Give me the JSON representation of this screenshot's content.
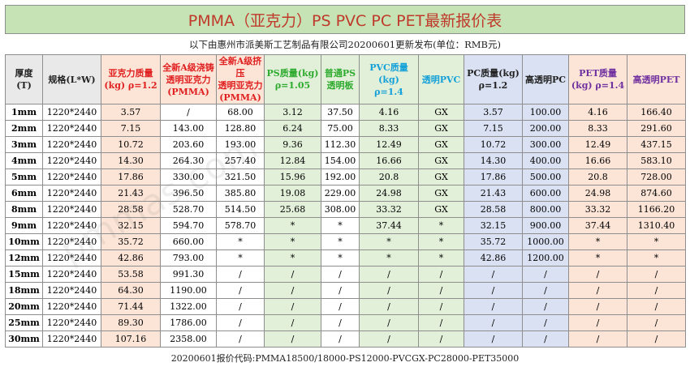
{
  "title": "PMMA（亚克力）PS PVC PC PET最新报价表",
  "subtitle": "以下由惠州市派美斯工艺制品有限公司20200601更新发布(单位：RMB元)",
  "watermark": "pmmas.com",
  "footer": "20200601报价代码:PMMA18500/18000-PS12000-PVCGX-PC28000-PET35000",
  "colors": {
    "red": "#e02020",
    "green": "#2eab2e",
    "cyan": "#14a0d8",
    "purple": "#7030a0",
    "pink_bg": "#fce4d6",
    "green_bg": "#e2f0d9",
    "blue_bg": "#d9e1f2",
    "title_bg": "#c5e3b4"
  },
  "headers": [
    [
      "厚度",
      "(T)"
    ],
    [
      "规格(L*W)"
    ],
    [
      "亚克力质量",
      "(kg) ρ=1.2"
    ],
    [
      "全新A级浇铸",
      "透明亚克力",
      "(PMMA)"
    ],
    [
      "全新A级挤压",
      "透明亚克力",
      "(PMMA)"
    ],
    [
      "PS质量(kg)",
      "ρ=1.05"
    ],
    [
      "普通PS",
      "透明板"
    ],
    [
      "PVC质量(kg)",
      "ρ=1.4"
    ],
    [
      "透明PVC"
    ],
    [
      "PC质量(kg)",
      "ρ=1.2"
    ],
    [
      "高透明PC"
    ],
    [
      "PET质量",
      "(kg) ρ=1.4"
    ],
    [
      "高透明PET"
    ]
  ],
  "rows": [
    [
      "1mm",
      "1220*2440",
      "3.57",
      "/",
      "68.00",
      "3.12",
      "37.50",
      "4.16",
      "GX",
      "3.57",
      "100.00",
      "4.16",
      "166.40"
    ],
    [
      "2mm",
      "1220*2440",
      "7.15",
      "143.00",
      "128.80",
      "6.24",
      "75.00",
      "8.33",
      "GX",
      "7.15",
      "200.00",
      "8.33",
      "291.60"
    ],
    [
      "3mm",
      "1220*2440",
      "10.72",
      "203.60",
      "193.00",
      "9.36",
      "112.30",
      "12.49",
      "GX",
      "10.72",
      "300.00",
      "12.49",
      "437.15"
    ],
    [
      "4mm",
      "1220*2440",
      "14.30",
      "264.30",
      "257.40",
      "12.84",
      "154.00",
      "16.66",
      "GX",
      "14.30",
      "400.00",
      "16.66",
      "583.10"
    ],
    [
      "5mm",
      "1220*2440",
      "17.86",
      "330.00",
      "321.50",
      "15.96",
      "192.00",
      "20.8",
      "GX",
      "17.86",
      "500.00",
      "20.8",
      "728.00"
    ],
    [
      "6mm",
      "1220*2440",
      "21.43",
      "396.50",
      "385.80",
      "19.08",
      "229.00",
      "24.98",
      "GX",
      "21.43",
      "600.00",
      "24.98",
      "874.60"
    ],
    [
      "8mm",
      "1220*2440",
      "28.58",
      "528.70",
      "514.50",
      "25.68",
      "308.00",
      "33.32",
      "GX",
      "28.58",
      "800.00",
      "33.32",
      "1166.20"
    ],
    [
      "9mm",
      "1220*2440",
      "32.15",
      "594.70",
      "578.70",
      "*",
      "*",
      "37.44",
      "*",
      "32.15",
      "900.00",
      "37.44",
      "1310.40"
    ],
    [
      "10mm",
      "1220*2440",
      "35.72",
      "660.00",
      "*",
      "*",
      "*",
      "*",
      "*",
      "35.72",
      "1000.00",
      "*",
      "*"
    ],
    [
      "12mm",
      "1220*2440",
      "42.86",
      "793.00",
      "*",
      "*",
      "*",
      "*",
      "*",
      "42.86",
      "1200.00",
      "*",
      "*"
    ],
    [
      "15mm",
      "1220*2440",
      "53.58",
      "991.30",
      "/",
      "/",
      "/",
      "/",
      "/",
      "/",
      "/",
      "/",
      "/"
    ],
    [
      "18mm",
      "1220*2440",
      "64.30",
      "1190.00",
      "/",
      "/",
      "/",
      "/",
      "/",
      "/",
      "/",
      "/",
      "/"
    ],
    [
      "20mm",
      "1220*2440",
      "71.44",
      "1322.00",
      "/",
      "/",
      "/",
      "/",
      "/",
      "/",
      "/",
      "/",
      "/"
    ],
    [
      "25mm",
      "1220*2440",
      "89.30",
      "1786.00",
      "/",
      "/",
      "/",
      "/",
      "/",
      "/",
      "/",
      "/",
      "/"
    ],
    [
      "30mm",
      "1220*2440",
      "107.16",
      "2358.00",
      "/",
      "/",
      "/",
      "/",
      "/",
      "/",
      "/",
      "/",
      "/"
    ]
  ]
}
